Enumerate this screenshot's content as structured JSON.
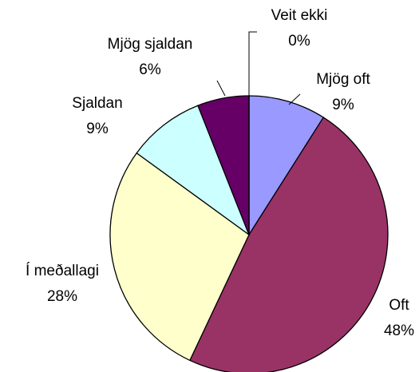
{
  "chart_data": {
    "type": "pie",
    "categories": [
      "Mjög oft",
      "Oft",
      "Í meðallagi",
      "Sjaldan",
      "Mjög sjaldan",
      "Veit ekki"
    ],
    "values": [
      9,
      48,
      28,
      9,
      6,
      0
    ],
    "value_labels": [
      "9%",
      "48%",
      "28%",
      "9%",
      "6%",
      "0%"
    ],
    "colors": [
      "#9999ff",
      "#993366",
      "#ffffcc",
      "#ccffff",
      "#660066",
      "#ffffff"
    ]
  }
}
